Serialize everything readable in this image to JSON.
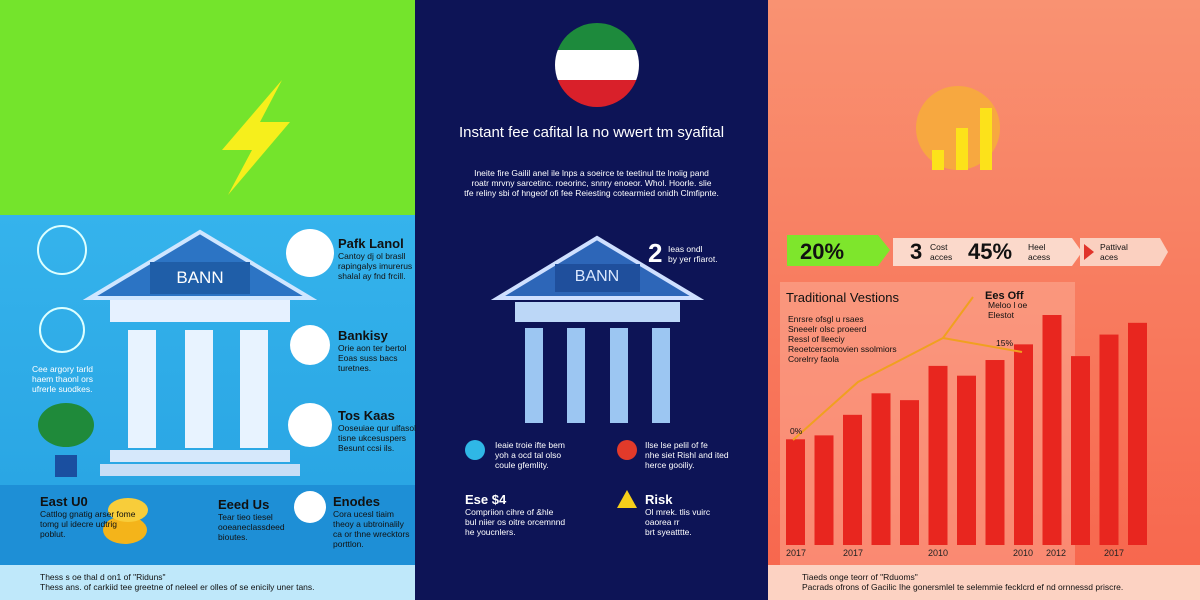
{
  "left": {
    "side_note": [
      "Cee argory tarld",
      "haem thaonl ors",
      "ufrerle suodkes."
    ],
    "bank_sign": "BANN",
    "items": [
      {
        "title": "Pafk Lanol",
        "lines": [
          "Cantoy dj ol brasll",
          "rapingalys imurerus",
          "shalal ay fnd frcill."
        ]
      },
      {
        "title": "Bankisy",
        "lines": [
          "Orie aon ter bertol",
          "Eoas suss bacs",
          "turetnes."
        ]
      },
      {
        "title": "Tos Kaas",
        "lines": [
          "Ooseuiae qur ulfasol",
          "tisne ukcesuspers",
          "Besunt ccsi ils."
        ]
      }
    ],
    "strip": [
      {
        "title": "East U0",
        "lines": [
          "Cattlog gnatig arser fome",
          "tomg ul idecre udtrig",
          "poblut."
        ]
      },
      {
        "title": "Eeed Us",
        "lines": [
          "Tear tieo tiesel",
          "ooeaneclassdeed",
          "bioutes."
        ]
      },
      {
        "title": "Enodes",
        "lines": [
          "Cora ucesl tiaim",
          "theoy a ubtroinalily",
          "ca or thne wrecktors",
          "porttlon."
        ]
      }
    ],
    "footer": [
      "Thess s oe thal d on1 of \"Riduns\"",
      "Thess ans. of carkiid tee greetne of neleel er olles of se enicily uner tans."
    ]
  },
  "middle": {
    "title": "Instant fee cafital la no wwert tm syafital",
    "paragraph": [
      "Ineite fire Gailil anel ile lnps a soeirce te teetinul tte lnoiig pand",
      "roatr mrvny sarcetinc. roeorinc, snnry enoeor. Whol. Hoorle. slie",
      "tfe reliny sbi of hngeof ofi fee Reiesting cotearmied onidh Clmfipnte."
    ],
    "bank_sign": "BANN",
    "number": "2",
    "number_lines": [
      "Ieas ondl",
      "by yer rfiarot."
    ],
    "pro": [
      "Ieaie troie ifte bem",
      "yoh a ocd tal olso",
      "coule gfemlity."
    ],
    "con": [
      "Ilse lse pelil of fe",
      "nhe siet Rishl and ited",
      "herce gooiliy."
    ],
    "cost_title": "Ese $4",
    "cost_lines": [
      "Compriion cihre of &hle",
      "bul niier os oitre orcemnnd",
      "he youcnlers."
    ],
    "risk_title": "Risk",
    "risk_lines": [
      "Ol mrek. tlis vuirc",
      "oaorea rr",
      "brt syeatttte."
    ]
  },
  "right": {
    "pills": [
      {
        "big": "20%"
      },
      {
        "big": "3",
        "lines": [
          "Cost",
          "acces"
        ]
      },
      {
        "big": "45%",
        "lines": [
          "Heel",
          "acess"
        ]
      },
      {
        "lines": [
          "Pattival",
          "aces"
        ]
      }
    ],
    "chart": {
      "title": "Traditional Vestions",
      "bullets": [
        "Enrsre ofsgl u rsaes",
        "Sneeelr olsc proeerd",
        "Ressl of lleeciy",
        "Reoetcerscmovien ssolmiors",
        "Corelrry faola"
      ],
      "callout_title": "Ees Off",
      "callout_lines": [
        "Meloo l oe",
        "Elestot"
      ],
      "note_a": "15%",
      "note_b": "0%",
      "bars": [
        108,
        112,
        133,
        155,
        148,
        183,
        173,
        189,
        205,
        235,
        193,
        215,
        227
      ],
      "x_labels": [
        "2017",
        "2017",
        "2010",
        "2010",
        "2012",
        "2017"
      ]
    },
    "footer": [
      "Tiaeds onge teorr of \"Rduoms\"",
      "Pacrads ofrons of Gacilic Ihe gonersmlel te selemmie fecklcrd ef nd ornnessd priscre."
    ]
  }
}
